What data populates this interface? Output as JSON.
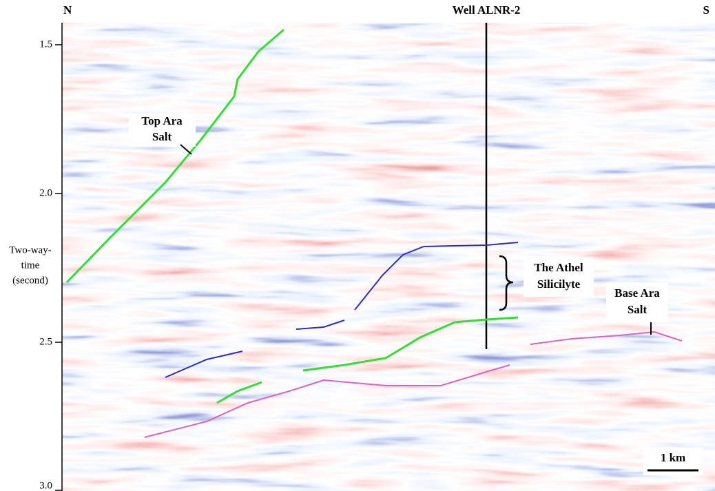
{
  "header": {
    "left": "N",
    "well": "Well ALNR-2",
    "right": "S"
  },
  "axis": {
    "label": [
      "Two-way-",
      "time",
      "(second)"
    ],
    "ticks": [
      "1.5",
      "2.0",
      "2.5",
      "3.0"
    ]
  },
  "annotations": {
    "top_ara_salt": [
      "Top Ara",
      "Salt"
    ],
    "athel_silicilyte": [
      "The Athel",
      "Silicilyte"
    ],
    "base_ara_salt": [
      "Base Ara",
      "Salt"
    ]
  },
  "scale_bar": "1 km"
}
